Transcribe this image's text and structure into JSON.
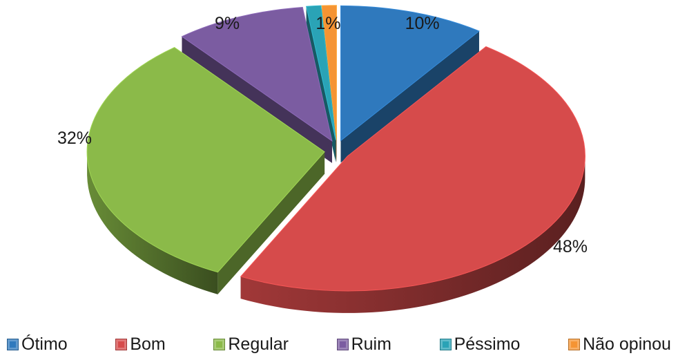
{
  "chart_data": {
    "type": "pie",
    "style": "3d-exploded",
    "categories": [
      "Ótimo",
      "Bom",
      "Regular",
      "Ruim",
      "Péssimo",
      "Não opinou"
    ],
    "values": [
      10,
      48,
      32,
      9,
      1,
      1
    ],
    "labels": [
      "10%",
      "48%",
      "32%",
      "9%",
      "",
      "1%"
    ],
    "colors": [
      "#2f79bd",
      "#d64b4b",
      "#8bba49",
      "#7b5ca1",
      "#2aa3b6",
      "#f59433"
    ],
    "legend": {
      "position": "bottom",
      "entries": [
        "Ótimo",
        "Bom",
        "Regular",
        "Ruim",
        "Péssimo",
        "Não opinou"
      ]
    }
  }
}
